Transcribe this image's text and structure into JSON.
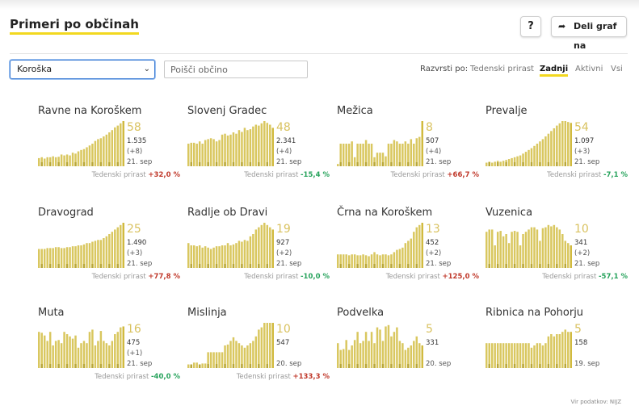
{
  "header": {
    "title": "Primeri po občinah",
    "help_label": "?",
    "share_label": "Deli graf na"
  },
  "filters": {
    "region": "Koroška",
    "search_placeholder": "Poišči občino",
    "sort_label": "Razvrsti po:",
    "sort_options": [
      "Tedenski prirast",
      "Zadnji",
      "Aktivni",
      "Vsi"
    ],
    "sort_active": "Zadnji"
  },
  "growth_label": "Tedenski prirast",
  "colors": {
    "bar": "#d9c75f",
    "bar_dark": "#9e8c18",
    "bar_last": "#d1ba3f",
    "up": "#c0392b",
    "down": "#27a35c",
    "accent": "#f2d81f"
  },
  "municipalities": [
    {
      "name": "Ravne na Koroškem",
      "active": "58",
      "total": "1.535",
      "delta": "(+8)",
      "date": "21. sep",
      "growth": "+32,0 %",
      "trend": "up",
      "bars": [
        0.18,
        0.2,
        0.17,
        0.2,
        0.2,
        0.22,
        0.2,
        0.21,
        0.26,
        0.24,
        0.26,
        0.24,
        0.3,
        0.28,
        0.33,
        0.36,
        0.38,
        0.42,
        0.46,
        0.5,
        0.56,
        0.6,
        0.62,
        0.66,
        0.7,
        0.75,
        0.8,
        0.86,
        0.9,
        0.95,
        1.0
      ]
    },
    {
      "name": "Slovenj Gradec",
      "active": "48",
      "total": "2.341",
      "delta": "(+4)",
      "date": "21. sep",
      "growth": "-15,4 %",
      "trend": "down",
      "bars": [
        0.5,
        0.52,
        0.52,
        0.5,
        0.55,
        0.5,
        0.58,
        0.6,
        0.62,
        0.6,
        0.55,
        0.58,
        0.7,
        0.72,
        0.68,
        0.7,
        0.75,
        0.72,
        0.8,
        0.76,
        0.85,
        0.8,
        0.82,
        0.88,
        0.92,
        0.9,
        0.95,
        1.0,
        0.96,
        0.92,
        0.85
      ]
    },
    {
      "name": "Mežica",
      "active": "8",
      "total": "507",
      "delta": "(+4)",
      "date": "21. sep",
      "growth": "+66,7 %",
      "trend": "up",
      "bars": [
        0.05,
        0.5,
        0.5,
        0.5,
        0.5,
        0.55,
        0.2,
        0.5,
        0.5,
        0.5,
        0.58,
        0.5,
        0.5,
        0.2,
        0.3,
        0.3,
        0.3,
        0.22,
        0.5,
        0.5,
        0.58,
        0.55,
        0.5,
        0.5,
        0.55,
        0.5,
        0.6,
        0.5,
        0.62,
        0.65,
        1.0
      ]
    },
    {
      "name": "Prevalje",
      "active": "54",
      "total": "1.097",
      "delta": "(+3)",
      "date": "21. sep",
      "growth": "-7,1 %",
      "trend": "down",
      "bars": [
        0.08,
        0.1,
        0.08,
        0.1,
        0.12,
        0.1,
        0.12,
        0.14,
        0.16,
        0.18,
        0.2,
        0.22,
        0.24,
        0.28,
        0.32,
        0.36,
        0.4,
        0.45,
        0.5,
        0.55,
        0.6,
        0.66,
        0.72,
        0.78,
        0.84,
        0.9,
        0.95,
        1.0,
        1.0,
        0.98,
        0.96
      ]
    },
    {
      "name": "Dravograd",
      "active": "25",
      "total": "1.490",
      "delta": "(+3)",
      "date": "21. sep",
      "growth": "+77,8 %",
      "trend": "up",
      "bars": [
        0.42,
        0.42,
        0.42,
        0.44,
        0.44,
        0.44,
        0.46,
        0.46,
        0.44,
        0.44,
        0.46,
        0.46,
        0.48,
        0.48,
        0.5,
        0.5,
        0.52,
        0.55,
        0.55,
        0.58,
        0.6,
        0.62,
        0.62,
        0.66,
        0.7,
        0.75,
        0.8,
        0.85,
        0.9,
        0.95,
        1.0
      ]
    },
    {
      "name": "Radlje ob Dravi",
      "active": "19",
      "total": "927",
      "delta": "(+2)",
      "date": "21. sep",
      "growth": "-10,0 %",
      "trend": "down",
      "bars": [
        0.55,
        0.5,
        0.5,
        0.48,
        0.5,
        0.45,
        0.48,
        0.45,
        0.42,
        0.45,
        0.48,
        0.48,
        0.5,
        0.5,
        0.55,
        0.5,
        0.52,
        0.55,
        0.6,
        0.58,
        0.62,
        0.6,
        0.7,
        0.75,
        0.85,
        0.9,
        0.95,
        1.0,
        0.95,
        0.9,
        0.85
      ]
    },
    {
      "name": "Črna na Koroškem",
      "active": "13",
      "total": "452",
      "delta": "(+2)",
      "date": "21. sep",
      "growth": "+125,0 %",
      "trend": "up",
      "bars": [
        0.3,
        0.3,
        0.3,
        0.3,
        0.28,
        0.3,
        0.3,
        0.28,
        0.28,
        0.3,
        0.28,
        0.26,
        0.3,
        0.35,
        0.3,
        0.28,
        0.3,
        0.3,
        0.28,
        0.3,
        0.35,
        0.4,
        0.42,
        0.45,
        0.55,
        0.6,
        0.65,
        0.8,
        0.9,
        0.95,
        1.0
      ]
    },
    {
      "name": "Vuzenica",
      "active": "10",
      "total": "341",
      "delta": "(+2)",
      "date": "21. sep",
      "growth": "-57,1 %",
      "trend": "down",
      "bars": [
        0.8,
        0.85,
        0.85,
        0.5,
        0.8,
        0.82,
        0.7,
        0.75,
        0.55,
        0.8,
        0.82,
        0.8,
        0.5,
        0.75,
        0.8,
        0.85,
        0.9,
        0.9,
        0.85,
        0.6,
        0.88,
        0.9,
        0.95,
        0.92,
        0.95,
        0.9,
        0.85,
        0.75,
        0.6,
        0.55,
        0.5
      ]
    },
    {
      "name": "Muta",
      "active": "16",
      "total": "475",
      "delta": "(+1)",
      "date": "21. sep",
      "growth": "-40,0 %",
      "trend": "down",
      "bars": [
        0.8,
        0.78,
        0.72,
        0.6,
        0.8,
        0.5,
        0.6,
        0.62,
        0.55,
        0.8,
        0.75,
        0.7,
        0.65,
        0.72,
        0.45,
        0.55,
        0.6,
        0.55,
        0.8,
        0.85,
        0.5,
        0.6,
        0.82,
        0.6,
        0.55,
        0.5,
        0.6,
        0.75,
        0.8,
        0.9,
        0.92
      ]
    },
    {
      "name": "Mislinja",
      "active": "10",
      "total": "547",
      "delta": "",
      "date": "20. sep",
      "growth": "+133,3 %",
      "trend": "up",
      "bars": [
        0.08,
        0.08,
        0.12,
        0.12,
        0.08,
        0.1,
        0.1,
        0.35,
        0.35,
        0.35,
        0.35,
        0.35,
        0.35,
        0.5,
        0.52,
        0.6,
        0.68,
        0.6,
        0.55,
        0.5,
        0.45,
        0.5,
        0.55,
        0.6,
        0.7,
        0.85,
        0.9,
        1.0,
        1.0,
        1.0,
        1.0
      ]
    },
    {
      "name": "Podvelka",
      "active": "5",
      "total": "331",
      "delta": "",
      "date": "20. sep",
      "growth": "",
      "trend": "none",
      "bars": [
        0.55,
        0.4,
        0.42,
        0.62,
        0.4,
        0.5,
        0.62,
        0.8,
        0.55,
        0.6,
        0.8,
        0.6,
        0.8,
        0.55,
        0.9,
        0.85,
        0.6,
        0.92,
        0.95,
        0.7,
        0.8,
        0.9,
        0.6,
        0.55,
        0.4,
        0.45,
        0.5,
        0.6,
        0.7,
        0.55,
        0.5
      ]
    },
    {
      "name": "Ribnica na Pohorju",
      "active": "5",
      "total": "158",
      "delta": "",
      "date": "19. sep",
      "growth": "",
      "trend": "none",
      "bars": [
        0.55,
        0.55,
        0.55,
        0.55,
        0.55,
        0.55,
        0.55,
        0.55,
        0.55,
        0.55,
        0.55,
        0.55,
        0.55,
        0.55,
        0.55,
        0.55,
        0.45,
        0.5,
        0.55,
        0.55,
        0.5,
        0.55,
        0.7,
        0.75,
        0.7,
        0.75,
        0.75,
        0.8,
        0.85,
        0.8,
        0.8
      ]
    }
  ],
  "footer": {
    "source": "Vir podatkov: NIJZ"
  }
}
